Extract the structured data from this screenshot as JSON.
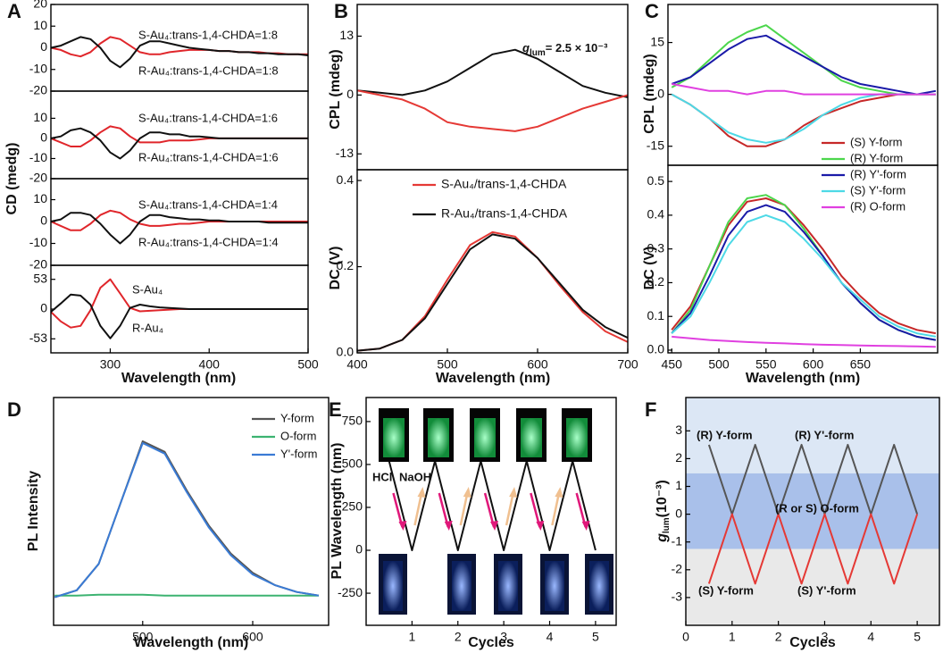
{
  "chart_data": [
    {
      "type": "line",
      "panel": "A",
      "ylabel": "CD (medg)",
      "x": [
        240,
        250,
        260,
        270,
        280,
        290,
        300,
        310,
        320,
        330,
        340,
        350,
        360,
        370,
        380,
        390,
        400,
        410,
        420,
        430,
        440,
        450,
        460,
        470,
        480,
        490,
        500
      ],
      "xlim": [
        240,
        500
      ],
      "ylim": [
        -20,
        20
      ],
      "yticks": [
        20,
        10,
        0,
        -10,
        -20
      ],
      "series": [
        {
          "name": "S-Au₄:trans-1,4-CHDA=1:8",
          "color": "#e0262b",
          "values": [
            0,
            -1,
            -3,
            -4,
            -2,
            2,
            5,
            4,
            1,
            -2,
            -3,
            -3,
            -2,
            -1.5,
            -1,
            -1,
            -1,
            -1.5,
            -1.5,
            -2,
            -2,
            -2,
            -2.5,
            -2.5,
            -3,
            -3,
            -3
          ]
        },
        {
          "name": "R-Au₄:trans-1,4-CHDA=1:8",
          "color": "#111111",
          "values": [
            0,
            1,
            3,
            5,
            4,
            0,
            -6,
            -9,
            -5,
            1,
            3,
            3,
            2,
            1,
            0,
            -0.5,
            -1,
            -1.5,
            -1.5,
            -2,
            -2,
            -2.5,
            -2.5,
            -3,
            -3,
            -3,
            -3.5
          ]
        }
      ]
    },
    {
      "type": "line",
      "x": [
        240,
        250,
        260,
        270,
        280,
        290,
        300,
        310,
        320,
        330,
        340,
        350,
        360,
        370,
        380,
        390,
        400,
        410,
        420,
        430,
        440,
        450,
        460,
        470,
        480,
        490,
        500
      ],
      "xlim": [
        240,
        500
      ],
      "ylim": [
        -20,
        23.5
      ],
      "yticks": [
        10,
        0,
        -10,
        -20
      ],
      "series": [
        {
          "name": "S-Au₄:trans-1,4-CHDA=1:6",
          "color": "#e0262b",
          "values": [
            0,
            -2,
            -4,
            -4,
            -1,
            3,
            6,
            5,
            1,
            -2,
            -2,
            -2,
            -1,
            -1,
            -1,
            -0.5,
            0,
            0,
            0,
            0,
            0,
            0,
            0,
            0,
            0,
            0,
            0
          ]
        },
        {
          "name": "R-Au₄:trans-1,4-CHDA=1:6",
          "color": "#111111",
          "values": [
            0,
            1,
            4,
            5,
            3,
            -1,
            -7,
            -10,
            -6,
            0,
            3,
            3,
            2,
            2,
            1,
            1,
            0.5,
            0,
            0,
            0,
            0,
            0,
            0,
            0,
            0,
            0,
            0
          ]
        }
      ]
    },
    {
      "type": "line",
      "x": [
        240,
        250,
        260,
        270,
        280,
        290,
        300,
        310,
        320,
        330,
        340,
        350,
        360,
        370,
        380,
        390,
        400,
        410,
        420,
        430,
        440,
        450,
        460,
        470,
        480,
        490,
        500
      ],
      "xlim": [
        240,
        500
      ],
      "ylim": [
        -20,
        19.6
      ],
      "yticks": [
        10,
        0,
        -10,
        -20
      ],
      "series": [
        {
          "name": "S-Au₄:trans-1,4-CHDA=1:4",
          "color": "#e0262b",
          "values": [
            0,
            -2,
            -4,
            -4,
            -1,
            3,
            5,
            4,
            1,
            -1,
            -2,
            -2,
            -1.5,
            -1,
            -1,
            -0.5,
            0,
            0,
            0,
            0,
            0,
            0,
            0,
            0,
            0,
            0,
            0
          ]
        },
        {
          "name": "R-Au₄:trans-1,4-CHDA=1:4",
          "color": "#111111",
          "values": [
            0,
            1,
            4,
            4,
            3,
            -1,
            -6,
            -10,
            -6,
            0,
            3,
            3,
            2,
            1.5,
            1,
            1,
            0.5,
            0.5,
            0,
            0,
            0,
            0,
            -0.5,
            -0.5,
            -0.5,
            -0.5,
            -0.5
          ]
        }
      ]
    },
    {
      "type": "line",
      "xlabel": "Wavelength (nm)",
      "x": [
        240,
        250,
        260,
        270,
        280,
        290,
        300,
        310,
        320,
        330,
        340,
        350,
        360,
        370,
        380,
        390,
        400,
        410,
        420,
        430,
        440,
        450,
        460,
        470,
        480,
        490,
        500
      ],
      "xlim": [
        240,
        500
      ],
      "xticks": [
        300,
        400,
        500
      ],
      "ylim": [
        -78,
        78
      ],
      "yticks": [
        53,
        0,
        -53
      ],
      "series": [
        {
          "name": "S-Au₄",
          "color": "#e0262b",
          "values": [
            -5,
            -22,
            -33,
            -30,
            -2,
            38,
            53,
            28,
            2,
            -4,
            -3,
            -2,
            -1,
            0,
            0,
            0,
            0,
            0,
            0,
            0,
            0,
            0,
            0,
            0,
            0,
            0,
            0
          ]
        },
        {
          "name": "R-Au₄",
          "color": "#111111",
          "values": [
            -5,
            10,
            26,
            24,
            8,
            -30,
            -52,
            -30,
            2,
            8,
            5,
            3,
            2,
            1,
            0,
            0,
            0,
            0,
            0,
            0,
            0,
            0,
            0,
            0,
            0,
            0,
            0
          ]
        }
      ]
    },
    {
      "type": "line",
      "panel": "B",
      "ylabel": "CPL (mdeg)",
      "annotation": {
        "symbol": "g",
        "subscript": "lum",
        "text": "= 2.5 × 10⁻³"
      },
      "x": [
        400,
        425,
        450,
        475,
        500,
        525,
        550,
        575,
        600,
        625,
        650,
        675,
        700
      ],
      "xlim": [
        400,
        700
      ],
      "ylim": [
        -16.5,
        20
      ],
      "yticks": [
        13,
        0,
        -13
      ],
      "series": [
        {
          "color": "#111111",
          "values": [
            1,
            0.5,
            0,
            1,
            3,
            6,
            9,
            10,
            8,
            5,
            2,
            0.5,
            -0.5
          ]
        },
        {
          "color": "#e53935",
          "values": [
            1,
            0,
            -1,
            -3,
            -6,
            -7,
            -7.5,
            -8,
            -7,
            -5,
            -3,
            -1.5,
            0
          ]
        }
      ]
    },
    {
      "type": "line",
      "ylabel": "DC (V)",
      "xlabel": "Wavelength (nm)",
      "x": [
        400,
        425,
        450,
        475,
        500,
        525,
        550,
        575,
        600,
        625,
        650,
        675,
        700
      ],
      "xlim": [
        400,
        700
      ],
      "xticks": [
        400,
        500,
        600,
        700
      ],
      "ylim": [
        0,
        0.425
      ],
      "yticks": [
        {
          "value": 0,
          "label": "0.0"
        },
        0.2,
        0.4
      ],
      "series": [
        {
          "name": "S-Au₄/trans-1,4-CHDA",
          "color": "#e53935",
          "values": [
            0.005,
            0.01,
            0.03,
            0.085,
            0.17,
            0.25,
            0.28,
            0.27,
            0.22,
            0.155,
            0.095,
            0.05,
            0.025
          ]
        },
        {
          "name": "R-Au₄/trans-1,4-CHDA",
          "color": "#111111",
          "values": [
            0.005,
            0.01,
            0.03,
            0.08,
            0.16,
            0.24,
            0.275,
            0.265,
            0.22,
            0.16,
            0.1,
            0.06,
            0.035
          ]
        }
      ]
    },
    {
      "type": "line",
      "panel": "C",
      "ylabel": "CPL (mdeg)",
      "x": [
        450,
        470,
        490,
        510,
        530,
        550,
        570,
        590,
        610,
        630,
        650,
        670,
        690,
        710,
        730
      ],
      "xlim": [
        446,
        732
      ],
      "ylim": [
        -20.5,
        26
      ],
      "yticks": [
        15,
        0,
        -15
      ],
      "series": [
        {
          "color": "#c62828",
          "values": [
            0,
            -3,
            -7,
            -12,
            -15,
            -15,
            -13,
            -9,
            -6,
            -4,
            -2,
            -1,
            0,
            0,
            0
          ]
        },
        {
          "color": "#4cd64c",
          "values": [
            2,
            5,
            10,
            15,
            18,
            20,
            16,
            12,
            8,
            4,
            2,
            1,
            0,
            0,
            0
          ]
        },
        {
          "color": "#1a1aa8",
          "values": [
            3,
            5,
            9,
            13,
            16,
            17,
            14,
            11,
            8,
            5,
            3,
            2,
            1,
            0,
            1
          ]
        },
        {
          "color": "#4dd9e6",
          "values": [
            0,
            -3,
            -7,
            -11,
            -13,
            -14,
            -13,
            -10,
            -6,
            -3,
            -1,
            0,
            0,
            0,
            0
          ]
        },
        {
          "color": "#e040e0",
          "values": [
            3,
            2,
            1,
            1,
            0,
            1,
            1,
            0,
            0,
            0,
            0,
            0,
            0,
            0,
            0
          ]
        }
      ]
    },
    {
      "type": "line",
      "ylabel": "DC (V)",
      "xlabel": "Wavelength (nm)",
      "x": [
        450,
        470,
        490,
        510,
        530,
        550,
        570,
        590,
        610,
        630,
        650,
        670,
        690,
        710,
        730
      ],
      "xlim": [
        446,
        732
      ],
      "xticks": [
        450,
        500,
        550,
        600,
        650
      ],
      "ylim": [
        -0.008,
        0.548
      ],
      "yticks": [
        {
          "value": 0,
          "label": "0.0"
        },
        0.1,
        0.2,
        0.3,
        0.4,
        0.5
      ],
      "series": [
        {
          "name": "(S) Y-form",
          "color": "#c62828",
          "values": [
            0.06,
            0.13,
            0.25,
            0.37,
            0.44,
            0.45,
            0.43,
            0.37,
            0.3,
            0.22,
            0.16,
            0.11,
            0.08,
            0.06,
            0.05
          ]
        },
        {
          "name": "(R) Y-form",
          "color": "#4cd64c",
          "values": [
            0.05,
            0.12,
            0.25,
            0.38,
            0.45,
            0.46,
            0.43,
            0.36,
            0.28,
            0.2,
            0.14,
            0.09,
            0.06,
            0.04,
            0.03
          ]
        },
        {
          "name": "(R) Y'-form",
          "color": "#1a1aa8",
          "values": [
            0.05,
            0.11,
            0.22,
            0.34,
            0.41,
            0.43,
            0.41,
            0.35,
            0.28,
            0.2,
            0.14,
            0.09,
            0.06,
            0.04,
            0.03
          ]
        },
        {
          "name": "(S) Y'-form",
          "color": "#4dd9e6",
          "values": [
            0.05,
            0.1,
            0.2,
            0.31,
            0.38,
            0.4,
            0.38,
            0.33,
            0.27,
            0.2,
            0.15,
            0.1,
            0.07,
            0.05,
            0.04
          ]
        },
        {
          "name": "(R) O-form",
          "color": "#e040e0",
          "values": [
            0.04,
            0.035,
            0.03,
            0.027,
            0.024,
            0.022,
            0.02,
            0.018,
            0.016,
            0.015,
            0.014,
            0.013,
            0.012,
            0.011,
            0.01
          ]
        }
      ]
    },
    {
      "type": "line",
      "panel": "D",
      "ylabel": "PL Intensity",
      "xlabel": "Wavelength (nm)",
      "x": [
        420,
        440,
        460,
        480,
        500,
        520,
        540,
        560,
        580,
        600,
        620,
        640,
        660
      ],
      "xlim": [
        419,
        669
      ],
      "xticks": [
        500,
        600
      ],
      "ylim": [
        -0.15,
        1.15
      ],
      "series": [
        {
          "name": "Y-form",
          "color": "#555555",
          "values": [
            0.01,
            0.05,
            0.2,
            0.55,
            0.9,
            0.84,
            0.62,
            0.42,
            0.26,
            0.15,
            0.08,
            0.04,
            0.02
          ]
        },
        {
          "name": "O-form",
          "color": "#3cb371",
          "values": [
            0.02,
            0.02,
            0.025,
            0.025,
            0.025,
            0.02,
            0.02,
            0.02,
            0.02,
            0.02,
            0.02,
            0.02,
            0.02
          ]
        },
        {
          "name": "Y'-form",
          "color": "#3a7bd5",
          "values": [
            0.01,
            0.05,
            0.2,
            0.55,
            0.89,
            0.83,
            0.61,
            0.41,
            0.25,
            0.14,
            0.08,
            0.04,
            0.02
          ]
        }
      ]
    },
    {
      "type": "line",
      "panel": "E",
      "ylabel": "PL Wavelength (nm)",
      "xlabel": "Cycles",
      "labels": [
        {
          "text": "HCl"
        },
        {
          "text": "NaOH"
        }
      ],
      "x": [
        0.5,
        1,
        1.5,
        2,
        2.5,
        3,
        3.5,
        4,
        4.5,
        5
      ],
      "xlim": [
        0,
        5.45
      ],
      "xticks": [
        1,
        2,
        3,
        4,
        5
      ],
      "ylim": [
        -437,
        890
      ],
      "yticks": [
        750,
        500,
        250,
        0,
        -250
      ],
      "series": [
        {
          "color": "#111111",
          "values": [
            520,
            0,
            520,
            0,
            520,
            0,
            520,
            0,
            520,
            0
          ]
        }
      ]
    },
    {
      "type": "line",
      "panel": "F",
      "ylabel": {
        "symbol": "g",
        "subscript": "lum",
        "text": "(10⁻³)"
      },
      "xlabel": "Cycles",
      "bands": [
        {
          "from": 1.47,
          "to": 4.2,
          "color": "#dce7f5"
        },
        {
          "from": -1.25,
          "to": 1.47,
          "color": "#a9c0ea"
        },
        {
          "from": -4,
          "to": -1.25,
          "color": "#e9e9e9"
        }
      ],
      "labels": [
        {
          "text": "(R) Y-form",
          "color": "#333333"
        },
        {
          "text": "(R) Y'-form",
          "color": "#555555"
        },
        {
          "text": "(R or S) O-form",
          "color": "#ffd700"
        },
        {
          "text": "(S) Y-form",
          "color": "#333333"
        },
        {
          "text": "(S) Y'-form",
          "color": "#e53935"
        }
      ],
      "x": [
        0.5,
        1,
        1.5,
        2,
        2.5,
        3,
        3.5,
        4,
        4.5,
        5
      ],
      "xlim": [
        0,
        5.48
      ],
      "xticks": [
        0,
        1,
        2,
        3,
        4,
        5
      ],
      "ylim": [
        -4,
        4.2
      ],
      "yticks": [
        3,
        2,
        1,
        0,
        -1,
        -2,
        -3
      ],
      "series": [
        {
          "color": "#555555",
          "values": [
            2.5,
            0,
            2.5,
            0,
            2.5,
            0,
            2.5,
            0,
            2.5,
            0
          ]
        },
        {
          "color": "#e53935",
          "values": [
            -2.5,
            0,
            -2.5,
            0,
            -2.5,
            0,
            -2.5,
            0,
            -2.5,
            0
          ]
        }
      ]
    }
  ]
}
